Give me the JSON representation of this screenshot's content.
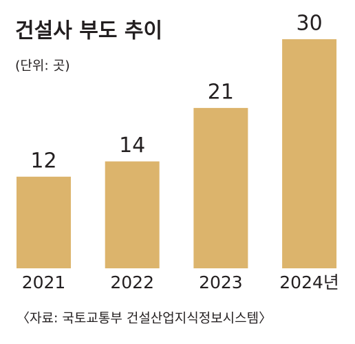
{
  "chart_data": {
    "type": "bar",
    "title": "건설사 부도 추이",
    "subtitle": "(단위: 곳)",
    "categories": [
      "2021",
      "2022",
      "2023",
      "2024년"
    ],
    "values": [
      12,
      14,
      21,
      30
    ],
    "color": "#dcb46c",
    "source": "〈자료: 국토교통부 건설산업지식정보시스템〉"
  }
}
